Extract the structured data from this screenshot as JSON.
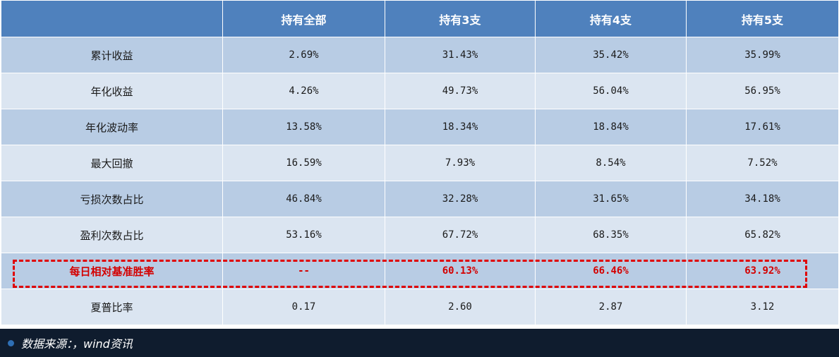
{
  "table": {
    "headers": [
      "",
      "持有全部",
      "持有3支",
      "持有4支",
      "持有5支"
    ],
    "rows": [
      {
        "metric": "累计收益",
        "values": [
          "2.69%",
          "31.43%",
          "35.42%",
          "35.99%"
        ]
      },
      {
        "metric": "年化收益",
        "values": [
          "4.26%",
          "49.73%",
          "56.04%",
          "56.95%"
        ]
      },
      {
        "metric": "年化波动率",
        "values": [
          "13.58%",
          "18.34%",
          "18.84%",
          "17.61%"
        ]
      },
      {
        "metric": "最大回撤",
        "values": [
          "16.59%",
          "7.93%",
          "8.54%",
          "7.52%"
        ]
      },
      {
        "metric": "亏损次数占比",
        "values": [
          "46.84%",
          "32.28%",
          "31.65%",
          "34.18%"
        ]
      },
      {
        "metric": "盈利次数占比",
        "values": [
          "53.16%",
          "67.72%",
          "68.35%",
          "65.82%"
        ]
      },
      {
        "metric": "每日相对基准胜率",
        "values": [
          "--",
          "60.13%",
          "66.46%",
          "63.92%"
        ]
      },
      {
        "metric": "夏普比率",
        "values": [
          "0.17",
          "2.60",
          "2.87",
          "3.12"
        ]
      }
    ]
  },
  "footer": {
    "source": "数据来源：，wind资讯"
  },
  "colors": {
    "header_bg": "#4f81bd",
    "row_dark": "#b8cce4",
    "row_light": "#dbe5f1",
    "highlight": "#d40000",
    "footer_bg": "#0f1c2e"
  }
}
